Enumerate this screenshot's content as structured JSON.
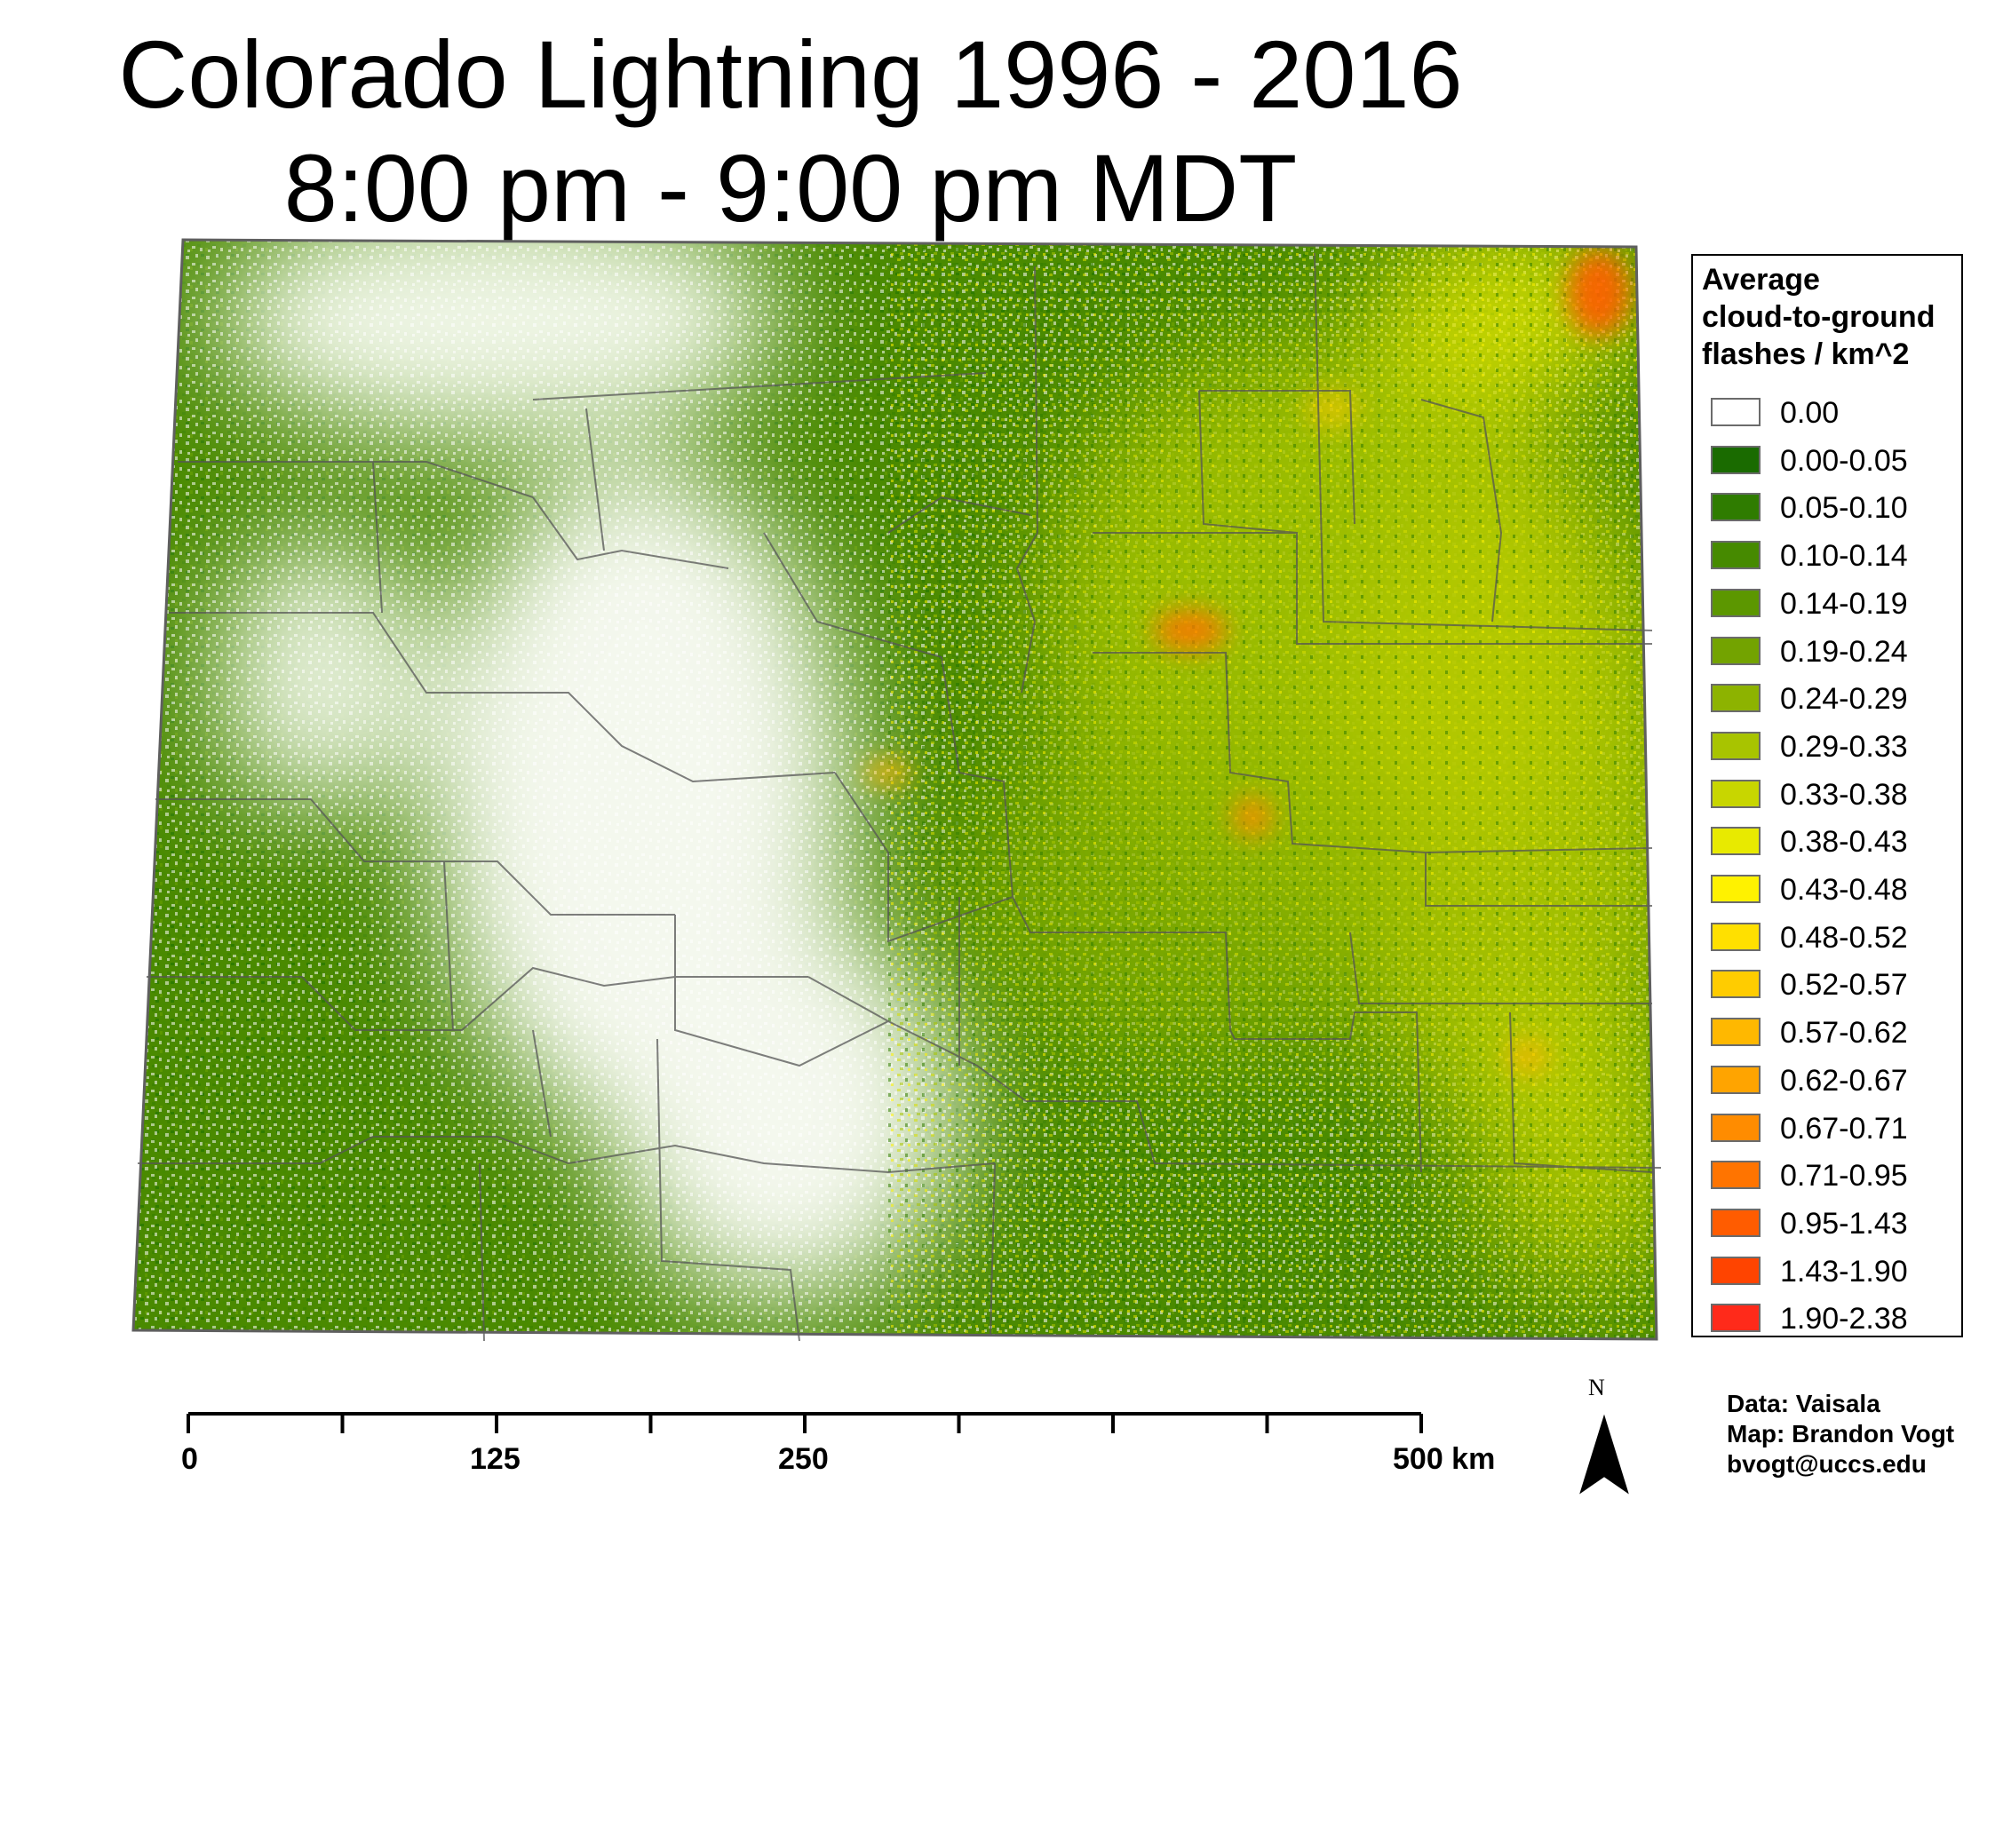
{
  "title_line1": "Colorado Lightning 1996 - 2016",
  "title_line2": "8:00 pm - 9:00 pm MDT",
  "legend": {
    "title_lines": [
      "Average",
      "cloud-to-ground",
      "flashes / km^2"
    ],
    "items": [
      {
        "label": "0.00",
        "color": "#ffffff"
      },
      {
        "label": "0.00-0.05",
        "color": "#1a6b00"
      },
      {
        "label": "0.05-0.10",
        "color": "#2f7c00"
      },
      {
        "label": "0.10-0.14",
        "color": "#468a00"
      },
      {
        "label": "0.14-0.19",
        "color": "#5c9700"
      },
      {
        "label": "0.19-0.24",
        "color": "#73a300"
      },
      {
        "label": "0.24-0.29",
        "color": "#8db300"
      },
      {
        "label": "0.29-0.33",
        "color": "#a8c400"
      },
      {
        "label": "0.33-0.38",
        "color": "#c8d600"
      },
      {
        "label": "0.38-0.43",
        "color": "#e8ea00"
      },
      {
        "label": "0.43-0.48",
        "color": "#fff200"
      },
      {
        "label": "0.48-0.52",
        "color": "#ffe000"
      },
      {
        "label": "0.52-0.57",
        "color": "#ffcc00"
      },
      {
        "label": "0.57-0.62",
        "color": "#ffb800"
      },
      {
        "label": "0.62-0.67",
        "color": "#ffa400"
      },
      {
        "label": "0.67-0.71",
        "color": "#ff8c00"
      },
      {
        "label": "0.71-0.95",
        "color": "#ff7400"
      },
      {
        "label": "0.95-1.43",
        "color": "#ff5c00"
      },
      {
        "label": "1.43-1.90",
        "color": "#ff4400"
      },
      {
        "label": "1.90-2.38",
        "color": "#ff2a1a"
      }
    ]
  },
  "scale_bar": {
    "labels": [
      "0",
      "125",
      "250",
      "500 km"
    ],
    "label_values_km": [
      0,
      125,
      250,
      500
    ],
    "max_km": 500,
    "tick_step_km": 62.5
  },
  "credits": [
    "Data: Vaisala",
    "Map: Brandon Vogt",
    "bvogt@uccs.edu"
  ],
  "north_label": "N"
}
